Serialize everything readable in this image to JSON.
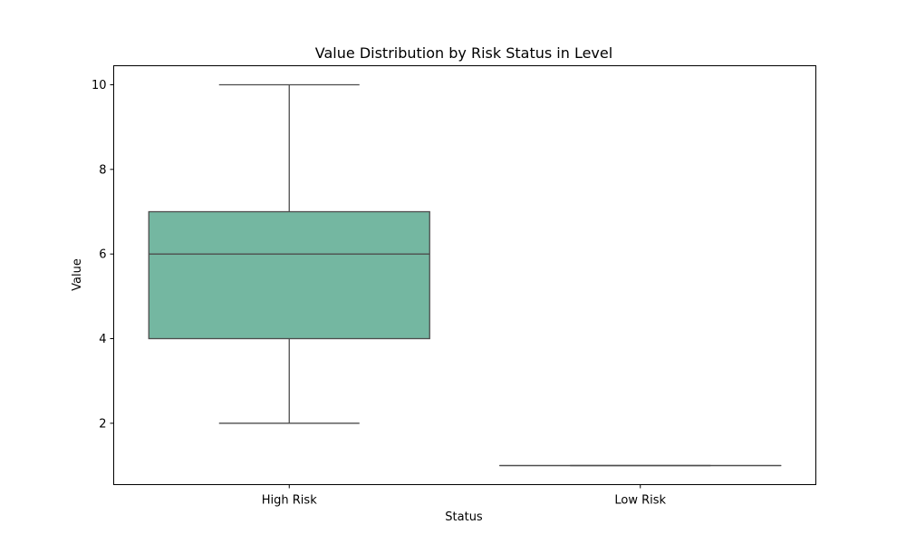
{
  "chart_data": {
    "type": "box",
    "title": "Value Distribution by Risk Status in Level",
    "xlabel": "Status",
    "ylabel": "Value",
    "categories": [
      "High Risk",
      "Low Risk"
    ],
    "boxes": [
      {
        "category": "High Risk",
        "whisker_low": 2,
        "q1": 4,
        "median": 6,
        "q3": 7,
        "whisker_high": 10
      },
      {
        "category": "Low Risk",
        "whisker_low": 1,
        "q1": 1,
        "median": 1,
        "q3": 1,
        "whisker_high": 1
      }
    ],
    "yticks": [
      2,
      4,
      6,
      8,
      10
    ],
    "ylim": [
      0.55,
      10.45
    ],
    "grid": false,
    "box_color": "#74b7a1",
    "line_color": "#4d4d4d"
  }
}
